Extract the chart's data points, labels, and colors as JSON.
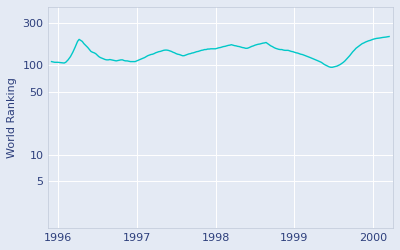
{
  "ylabel": "World Ranking",
  "line_color": "#00c8c8",
  "background_color": "#e4eaf4",
  "fig_background": "#e4eaf4",
  "xmin": 1995.88,
  "xmax": 2000.25,
  "ymin": 1.5,
  "ymax": 450,
  "yticks": [
    5,
    10,
    50,
    100,
    300
  ],
  "xticks": [
    1996,
    1997,
    1998,
    1999,
    2000
  ],
  "line_width": 1.0,
  "ranking_data": [
    [
      1995.92,
      110
    ],
    [
      1995.96,
      108
    ],
    [
      1996.0,
      108
    ],
    [
      1996.04,
      107
    ],
    [
      1996.08,
      106
    ],
    [
      1996.1,
      108
    ],
    [
      1996.13,
      115
    ],
    [
      1996.16,
      125
    ],
    [
      1996.19,
      140
    ],
    [
      1996.22,
      160
    ],
    [
      1996.25,
      185
    ],
    [
      1996.27,
      195
    ],
    [
      1996.29,
      190
    ],
    [
      1996.31,
      185
    ],
    [
      1996.33,
      175
    ],
    [
      1996.35,
      168
    ],
    [
      1996.38,
      158
    ],
    [
      1996.4,
      150
    ],
    [
      1996.42,
      143
    ],
    [
      1996.44,
      140
    ],
    [
      1996.46,
      138
    ],
    [
      1996.48,
      135
    ],
    [
      1996.5,
      130
    ],
    [
      1996.52,
      125
    ],
    [
      1996.54,
      122
    ],
    [
      1996.56,
      120
    ],
    [
      1996.58,
      118
    ],
    [
      1996.6,
      116
    ],
    [
      1996.62,
      115
    ],
    [
      1996.64,
      115
    ],
    [
      1996.66,
      116
    ],
    [
      1996.68,
      115
    ],
    [
      1996.7,
      114
    ],
    [
      1996.72,
      113
    ],
    [
      1996.74,
      112
    ],
    [
      1996.76,
      113
    ],
    [
      1996.78,
      114
    ],
    [
      1996.8,
      115
    ],
    [
      1996.82,
      115
    ],
    [
      1996.84,
      113
    ],
    [
      1996.86,
      112
    ],
    [
      1996.88,
      112
    ],
    [
      1996.9,
      111
    ],
    [
      1996.92,
      110
    ],
    [
      1996.94,
      110
    ],
    [
      1996.96,
      110
    ],
    [
      1996.98,
      110
    ],
    [
      1997.0,
      112
    ],
    [
      1997.03,
      115
    ],
    [
      1997.06,
      118
    ],
    [
      1997.08,
      120
    ],
    [
      1997.1,
      122
    ],
    [
      1997.12,
      125
    ],
    [
      1997.14,
      128
    ],
    [
      1997.16,
      130
    ],
    [
      1997.18,
      132
    ],
    [
      1997.2,
      133
    ],
    [
      1997.22,
      135
    ],
    [
      1997.24,
      138
    ],
    [
      1997.26,
      140
    ],
    [
      1997.28,
      142
    ],
    [
      1997.3,
      143
    ],
    [
      1997.32,
      145
    ],
    [
      1997.34,
      147
    ],
    [
      1997.36,
      148
    ],
    [
      1997.38,
      148
    ],
    [
      1997.4,
      147
    ],
    [
      1997.42,
      145
    ],
    [
      1997.44,
      143
    ],
    [
      1997.46,
      140
    ],
    [
      1997.48,
      138
    ],
    [
      1997.5,
      135
    ],
    [
      1997.52,
      133
    ],
    [
      1997.54,
      132
    ],
    [
      1997.56,
      130
    ],
    [
      1997.58,
      128
    ],
    [
      1997.6,
      128
    ],
    [
      1997.62,
      130
    ],
    [
      1997.64,
      132
    ],
    [
      1997.66,
      134
    ],
    [
      1997.68,
      135
    ],
    [
      1997.7,
      137
    ],
    [
      1997.72,
      138
    ],
    [
      1997.74,
      140
    ],
    [
      1997.76,
      142
    ],
    [
      1997.78,
      143
    ],
    [
      1997.8,
      145
    ],
    [
      1997.82,
      147
    ],
    [
      1997.84,
      148
    ],
    [
      1997.86,
      150
    ],
    [
      1997.88,
      150
    ],
    [
      1997.9,
      152
    ],
    [
      1997.92,
      152
    ],
    [
      1997.94,
      153
    ],
    [
      1997.96,
      153
    ],
    [
      1997.98,
      153
    ],
    [
      1998.0,
      153
    ],
    [
      1998.02,
      155
    ],
    [
      1998.04,
      157
    ],
    [
      1998.06,
      158
    ],
    [
      1998.08,
      160
    ],
    [
      1998.1,
      162
    ],
    [
      1998.12,
      163
    ],
    [
      1998.14,
      165
    ],
    [
      1998.16,
      167
    ],
    [
      1998.18,
      168
    ],
    [
      1998.2,
      170
    ],
    [
      1998.22,
      168
    ],
    [
      1998.24,
      166
    ],
    [
      1998.26,
      165
    ],
    [
      1998.28,
      163
    ],
    [
      1998.3,
      162
    ],
    [
      1998.32,
      160
    ],
    [
      1998.34,
      158
    ],
    [
      1998.36,
      157
    ],
    [
      1998.38,
      155
    ],
    [
      1998.4,
      155
    ],
    [
      1998.42,
      157
    ],
    [
      1998.44,
      160
    ],
    [
      1998.46,
      163
    ],
    [
      1998.48,
      165
    ],
    [
      1998.5,
      168
    ],
    [
      1998.52,
      170
    ],
    [
      1998.54,
      172
    ],
    [
      1998.56,
      173
    ],
    [
      1998.58,
      175
    ],
    [
      1998.6,
      177
    ],
    [
      1998.62,
      178
    ],
    [
      1998.64,
      180
    ],
    [
      1998.66,
      175
    ],
    [
      1998.68,
      170
    ],
    [
      1998.7,
      165
    ],
    [
      1998.72,
      162
    ],
    [
      1998.74,
      158
    ],
    [
      1998.76,
      155
    ],
    [
      1998.78,
      153
    ],
    [
      1998.8,
      151
    ],
    [
      1998.82,
      150
    ],
    [
      1998.84,
      150
    ],
    [
      1998.86,
      148
    ],
    [
      1998.88,
      147
    ],
    [
      1998.9,
      147
    ],
    [
      1998.92,
      147
    ],
    [
      1998.94,
      145
    ],
    [
      1998.96,
      143
    ],
    [
      1998.98,
      142
    ],
    [
      1999.0,
      140
    ],
    [
      1999.02,
      138
    ],
    [
      1999.04,
      137
    ],
    [
      1999.06,
      135
    ],
    [
      1999.08,
      133
    ],
    [
      1999.1,
      132
    ],
    [
      1999.12,
      130
    ],
    [
      1999.14,
      128
    ],
    [
      1999.16,
      126
    ],
    [
      1999.18,
      124
    ],
    [
      1999.2,
      122
    ],
    [
      1999.22,
      120
    ],
    [
      1999.24,
      118
    ],
    [
      1999.26,
      116
    ],
    [
      1999.28,
      114
    ],
    [
      1999.3,
      112
    ],
    [
      1999.32,
      110
    ],
    [
      1999.34,
      108
    ],
    [
      1999.36,
      105
    ],
    [
      1999.38,
      102
    ],
    [
      1999.4,
      100
    ],
    [
      1999.42,
      98
    ],
    [
      1999.44,
      96
    ],
    [
      1999.46,
      95
    ],
    [
      1999.48,
      95
    ],
    [
      1999.5,
      96
    ],
    [
      1999.52,
      97
    ],
    [
      1999.54,
      98
    ],
    [
      1999.56,
      100
    ],
    [
      1999.58,
      102
    ],
    [
      1999.6,
      105
    ],
    [
      1999.62,
      108
    ],
    [
      1999.64,
      112
    ],
    [
      1999.66,
      117
    ],
    [
      1999.68,
      122
    ],
    [
      1999.7,
      128
    ],
    [
      1999.72,
      135
    ],
    [
      1999.74,
      142
    ],
    [
      1999.76,
      148
    ],
    [
      1999.78,
      155
    ],
    [
      1999.8,
      160
    ],
    [
      1999.82,
      165
    ],
    [
      1999.84,
      170
    ],
    [
      1999.86,
      175
    ],
    [
      1999.88,
      178
    ],
    [
      1999.9,
      182
    ],
    [
      1999.92,
      185
    ],
    [
      1999.94,
      188
    ],
    [
      1999.96,
      190
    ],
    [
      1999.98,
      193
    ],
    [
      2000.0,
      196
    ],
    [
      2000.04,
      200
    ],
    [
      2000.08,
      202
    ],
    [
      2000.12,
      205
    ],
    [
      2000.16,
      207
    ],
    [
      2000.2,
      210
    ]
  ]
}
